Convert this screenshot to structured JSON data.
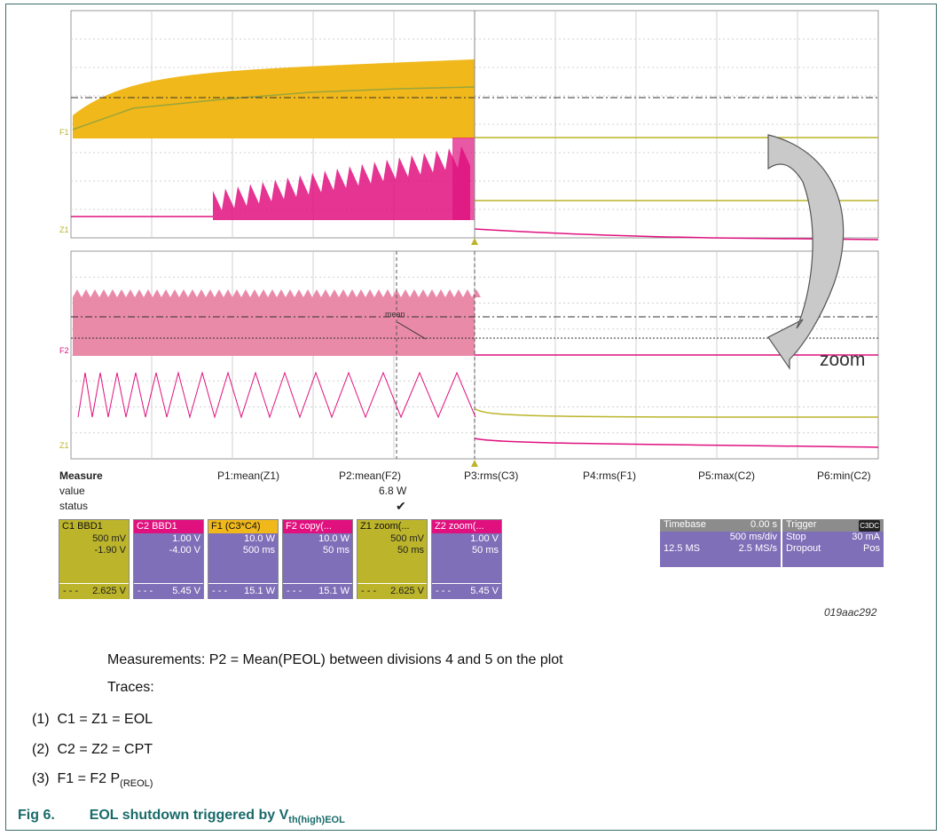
{
  "grid_labels": {
    "f1": "F1",
    "z1_top": "Z1",
    "f2": "F2",
    "z1_bottom": "Z1"
  },
  "measure": {
    "header": "Measure",
    "row_value": "value",
    "row_status": "status",
    "params": [
      "P1:mean(Z1)",
      "P2:mean(F2)",
      "P3:rms(C3)",
      "P4:rms(F1)",
      "P5:max(C2)",
      "P6:min(C2)"
    ],
    "p2_value": "6.8 W",
    "p2_status": "✔"
  },
  "annotations": {
    "mean_marker": "mean",
    "zoom": "zoom"
  },
  "channels": [
    {
      "name": "C1",
      "badge": "BBD1",
      "line1": "500 mV",
      "line2": "-1.90 V",
      "foot": "2.625 V",
      "color": "#bcb42a"
    },
    {
      "name": "C2",
      "badge": "BBD1",
      "line1": "1.00 V",
      "line2": "-4.00 V",
      "foot": "5.45 V",
      "color": "#e0117f"
    },
    {
      "name": "F1",
      "badge": "(C3*C4)",
      "line1": "10.0 W",
      "line2": "500 ms",
      "foot": "15.1 W",
      "color": "#f0b81a"
    },
    {
      "name": "F2",
      "badge": "copy(...",
      "line1": "10.0 W",
      "line2": "50 ms",
      "foot": "15.1 W",
      "color": "#e0117f"
    },
    {
      "name": "Z1",
      "badge": "zoom(...",
      "line1": "500 mV",
      "line2": "50 ms",
      "foot": "2.625 V",
      "color": "#bcb42a"
    },
    {
      "name": "Z2",
      "badge": "zoom(...",
      "line1": "1.00 V",
      "line2": "50 ms",
      "foot": "5.45 V",
      "color": "#e0117f"
    }
  ],
  "timebase": {
    "label": "Timebase",
    "delay": "0.00 s",
    "rate": "500 ms/div",
    "samples": "12.5 MS",
    "srate": "2.5 MS/s"
  },
  "trigger": {
    "label": "Trigger",
    "badge": "C3DC",
    "mode": "Stop",
    "level": "30 mA",
    "type": "Dropout",
    "slope": "Pos"
  },
  "figure_id": "019aac292",
  "notes": {
    "measurements": "Measurements: P2 = Mean(PEOL) between divisions 4 and 5 on the plot",
    "traces": "Traces:",
    "items": [
      {
        "num": "(1)",
        "text": "C1 = Z1 = EOL"
      },
      {
        "num": "(2)",
        "text": "C2 = Z2 = CPT"
      },
      {
        "num": "(3)",
        "text": "F1 = F2 P",
        "sub": "(REOL)"
      }
    ]
  },
  "caption": {
    "prefix": "Fig 6.",
    "text": "EOL shutdown triggered by V",
    "sub": "th(high)EOL"
  },
  "colors": {
    "yellow": "#f0b81a",
    "magenta": "#e0117f",
    "olive": "#bcb42a",
    "tile_body": "#7f6fb8",
    "caption": "#1a6a6a"
  }
}
